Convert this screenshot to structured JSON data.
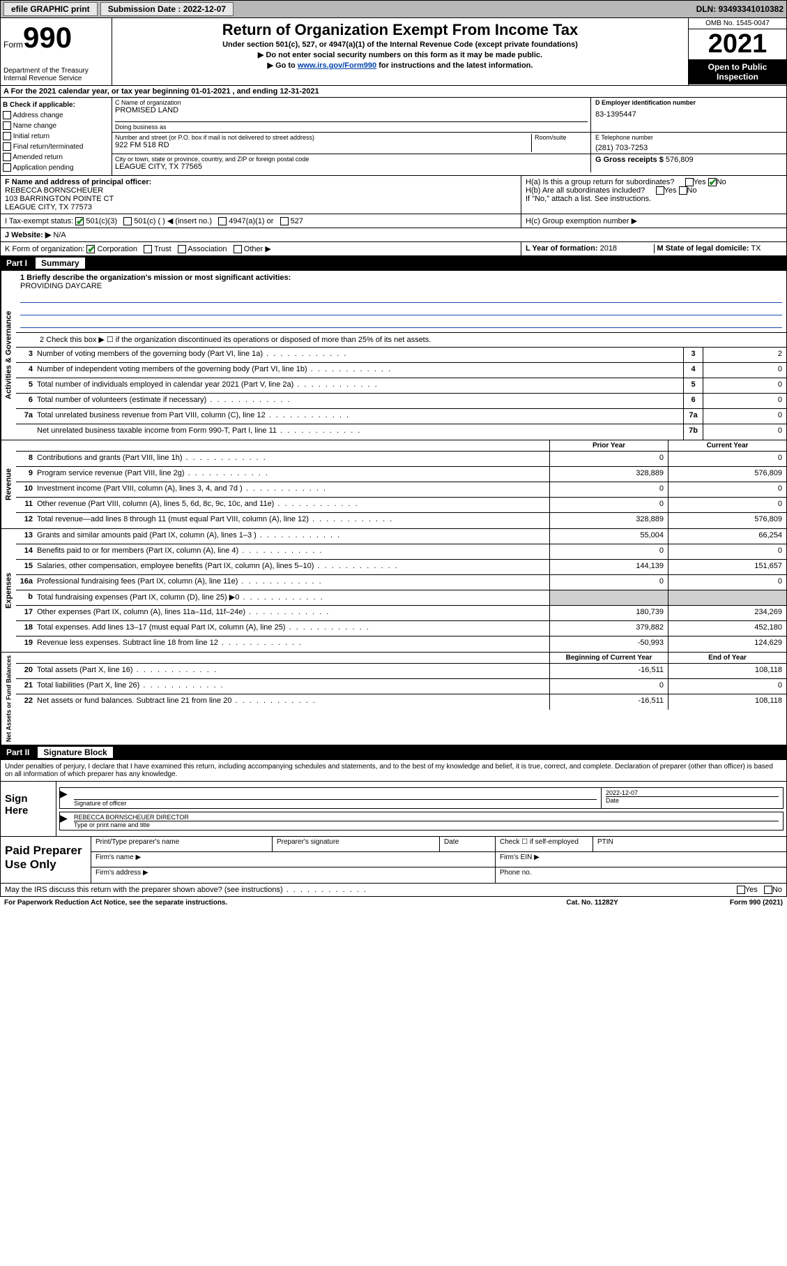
{
  "topbar": {
    "efile": "efile GRAPHIC print",
    "sub_label": "Submission Date : 2022-12-07",
    "dln": "DLN: 93493341010382"
  },
  "header": {
    "form_label": "Form",
    "form_num": "990",
    "dept": "Department of the Treasury",
    "irs": "Internal Revenue Service",
    "title": "Return of Organization Exempt From Income Tax",
    "sub1": "Under section 501(c), 527, or 4947(a)(1) of the Internal Revenue Code (except private foundations)",
    "sub2": "▶ Do not enter social security numbers on this form as it may be made public.",
    "sub3a": "▶ Go to ",
    "sub3_link": "www.irs.gov/Form990",
    "sub3b": " for instructions and the latest information.",
    "omb": "OMB No. 1545-0047",
    "year": "2021",
    "open": "Open to Public Inspection"
  },
  "rowA": "A For the 2021 calendar year, or tax year beginning 01-01-2021    , and ending 12-31-2021",
  "checkB": {
    "title": "B Check if applicable:",
    "items": [
      "Address change",
      "Name change",
      "Initial return",
      "Final return/terminated",
      "Amended return",
      "Application pending"
    ]
  },
  "blockC": {
    "name_label": "C Name of organization",
    "name": "PROMISED LAND",
    "dba_label": "Doing business as",
    "street_label": "Number and street (or P.O. box if mail is not delivered to street address)",
    "room_label": "Room/suite",
    "street": "922 FM 518 RD",
    "city_label": "City or town, state or province, country, and ZIP or foreign postal code",
    "city": "LEAGUE CITY, TX  77565"
  },
  "blockD": {
    "label": "D Employer identification number",
    "val": "83-1395447"
  },
  "blockE": {
    "label": "E Telephone number",
    "val": "(281) 703-7253"
  },
  "blockG": {
    "label": "G Gross receipts $",
    "val": "576,809"
  },
  "blockF": {
    "label": "F  Name and address of principal officer:",
    "name": "REBECCA BORNSCHEUER",
    "addr1": "103 BARRINGTON POINTE CT",
    "addr2": "LEAGUE CITY, TX  77573"
  },
  "blockH": {
    "ha": "H(a)  Is this a group return for subordinates?",
    "hb": "H(b)  Are all subordinates included?",
    "hb_note": "If \"No,\" attach a list. See instructions.",
    "hc": "H(c)  Group exemption number ▶"
  },
  "rowI": {
    "label": "I   Tax-exempt status:",
    "opts": [
      "501(c)(3)",
      "501(c) (  ) ◀ (insert no.)",
      "4947(a)(1) or",
      "527"
    ]
  },
  "rowJ": {
    "label": "J   Website: ▶",
    "val": "N/A"
  },
  "rowK": {
    "label": "K Form of organization:",
    "opts": [
      "Corporation",
      "Trust",
      "Association",
      "Other ▶"
    ]
  },
  "rowL": {
    "label": "L Year of formation:",
    "val": "2018"
  },
  "rowM": {
    "label": "M State of legal domicile:",
    "val": "TX"
  },
  "part1": {
    "num": "Part I",
    "title": "Summary"
  },
  "mission": {
    "q": "1  Briefly describe the organization's mission or most significant activities:",
    "a": "PROVIDING DAYCARE"
  },
  "line2": "2   Check this box ▶ ☐  if the organization discontinued its operations or disposed of more than 25% of its net assets.",
  "govLines": [
    {
      "n": "3",
      "d": "Number of voting members of the governing body (Part VI, line 1a)",
      "b": "3",
      "v": "2"
    },
    {
      "n": "4",
      "d": "Number of independent voting members of the governing body (Part VI, line 1b)",
      "b": "4",
      "v": "0"
    },
    {
      "n": "5",
      "d": "Total number of individuals employed in calendar year 2021 (Part V, line 2a)",
      "b": "5",
      "v": "0"
    },
    {
      "n": "6",
      "d": "Total number of volunteers (estimate if necessary)",
      "b": "6",
      "v": "0"
    },
    {
      "n": "7a",
      "d": "Total unrelated business revenue from Part VIII, column (C), line 12",
      "b": "7a",
      "v": "0"
    },
    {
      "n": "",
      "d": "Net unrelated business taxable income from Form 990-T, Part I, line 11",
      "b": "7b",
      "v": "0"
    }
  ],
  "colHdr": {
    "prior": "Prior Year",
    "current": "Current Year"
  },
  "revLines": [
    {
      "n": "8",
      "d": "Contributions and grants (Part VIII, line 1h)",
      "p": "0",
      "c": "0"
    },
    {
      "n": "9",
      "d": "Program service revenue (Part VIII, line 2g)",
      "p": "328,889",
      "c": "576,809"
    },
    {
      "n": "10",
      "d": "Investment income (Part VIII, column (A), lines 3, 4, and 7d )",
      "p": "0",
      "c": "0"
    },
    {
      "n": "11",
      "d": "Other revenue (Part VIII, column (A), lines 5, 6d, 8c, 9c, 10c, and 11e)",
      "p": "0",
      "c": "0"
    },
    {
      "n": "12",
      "d": "Total revenue—add lines 8 through 11 (must equal Part VIII, column (A), line 12)",
      "p": "328,889",
      "c": "576,809"
    }
  ],
  "expLines": [
    {
      "n": "13",
      "d": "Grants and similar amounts paid (Part IX, column (A), lines 1–3 )",
      "p": "55,004",
      "c": "66,254"
    },
    {
      "n": "14",
      "d": "Benefits paid to or for members (Part IX, column (A), line 4)",
      "p": "0",
      "c": "0"
    },
    {
      "n": "15",
      "d": "Salaries, other compensation, employee benefits (Part IX, column (A), lines 5–10)",
      "p": "144,139",
      "c": "151,657"
    },
    {
      "n": "16a",
      "d": "Professional fundraising fees (Part IX, column (A), line 11e)",
      "p": "0",
      "c": "0"
    },
    {
      "n": "b",
      "d": "Total fundraising expenses (Part IX, column (D), line 25) ▶0",
      "p": "",
      "c": "",
      "shade": true
    },
    {
      "n": "17",
      "d": "Other expenses (Part IX, column (A), lines 11a–11d, 11f–24e)",
      "p": "180,739",
      "c": "234,269"
    },
    {
      "n": "18",
      "d": "Total expenses. Add lines 13–17 (must equal Part IX, column (A), line 25)",
      "p": "379,882",
      "c": "452,180"
    },
    {
      "n": "19",
      "d": "Revenue less expenses. Subtract line 18 from line 12",
      "p": "-50,993",
      "c": "124,629"
    }
  ],
  "netHdr": {
    "begin": "Beginning of Current Year",
    "end": "End of Year"
  },
  "netLines": [
    {
      "n": "20",
      "d": "Total assets (Part X, line 16)",
      "p": "-16,511",
      "c": "108,118"
    },
    {
      "n": "21",
      "d": "Total liabilities (Part X, line 26)",
      "p": "0",
      "c": "0"
    },
    {
      "n": "22",
      "d": "Net assets or fund balances. Subtract line 21 from line 20",
      "p": "-16,511",
      "c": "108,118"
    }
  ],
  "vlabels": {
    "gov": "Activities & Governance",
    "rev": "Revenue",
    "exp": "Expenses",
    "net": "Net Assets or Fund Balances"
  },
  "part2": {
    "num": "Part II",
    "title": "Signature Block"
  },
  "penalty": "Under penalties of perjury, I declare that I have examined this return, including accompanying schedules and statements, and to the best of my knowledge and belief, it is true, correct, and complete. Declaration of preparer (other than officer) is based on all information of which preparer has any knowledge.",
  "sign": {
    "here": "Sign Here",
    "sig_label": "Signature of officer",
    "date_label": "Date",
    "date": "2022-12-07",
    "name": "REBECCA BORNSCHEUER  DIRECTOR",
    "name_label": "Type or print name and title"
  },
  "paid": {
    "title": "Paid Preparer Use Only",
    "h1": "Print/Type preparer's name",
    "h2": "Preparer's signature",
    "h3": "Date",
    "h4": "Check ☐ if self-employed",
    "h5": "PTIN",
    "firm_name": "Firm's name   ▶",
    "firm_ein": "Firm's EIN ▶",
    "firm_addr": "Firm's address ▶",
    "phone": "Phone no."
  },
  "footQ": "May the IRS discuss this return with the preparer shown above? (see instructions)",
  "footer": {
    "left": "For Paperwork Reduction Act Notice, see the separate instructions.",
    "mid": "Cat. No. 11282Y",
    "right": "Form 990 (2021)"
  }
}
